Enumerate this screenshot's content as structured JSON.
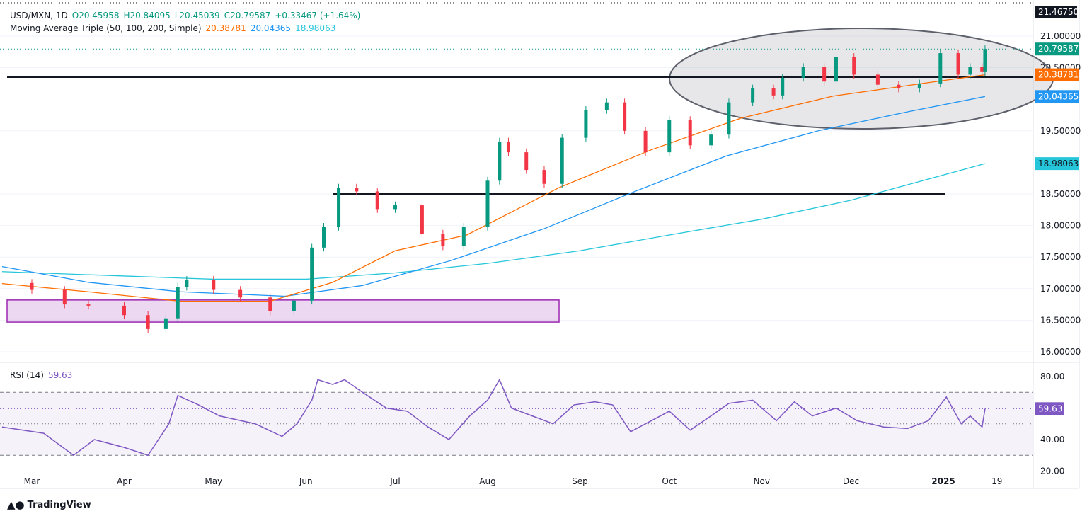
{
  "header": {
    "symbol": "USD/MXN, 1D",
    "open": "O20.45958",
    "high": "H20.84095",
    "low": "L20.45039",
    "close": "C20.79587",
    "change": "+0.33467 (+1.64%)",
    "ma_label": "Moving Average Triple (50, 100, 200, Simple)",
    "ma50": "20.38781",
    "ma100": "20.04365",
    "ma200": "18.98063",
    "rsi_label": "RSI (14)",
    "rsi_value": "59.63"
  },
  "branding": "TradingView",
  "colors": {
    "up": "#089981",
    "down": "#f23645",
    "ma50": "#ff6d00",
    "ma100": "#2196f3",
    "ma200": "#26c6da",
    "rsi": "#7e57c2",
    "zone": "#9c27b0"
  },
  "chart_data": {
    "type": "candlestick",
    "price_axis": {
      "range": [
        16.0,
        21.0
      ],
      "ticks": [
        "21.00000",
        "20.50000",
        "19.50000",
        "18.50000",
        "18.00000",
        "17.50000",
        "17.00000",
        "16.50000",
        "16.00000"
      ],
      "top_label": "21.46750"
    },
    "price_tags": [
      {
        "value": "20.79587",
        "color": "#089981"
      },
      {
        "value": "20.38781",
        "color": "#ff6d00"
      },
      {
        "value": "20.04365",
        "color": "#2196f3"
      },
      {
        "value": "18.98063",
        "color": "#26c6da"
      }
    ],
    "x_ticks": [
      {
        "label": "Mar",
        "date": "2024-03-01"
      },
      {
        "label": "Apr",
        "date": "2024-04-01"
      },
      {
        "label": "May",
        "date": "2024-05-01"
      },
      {
        "label": "Jun",
        "date": "2024-06-01"
      },
      {
        "label": "Jul",
        "date": "2024-07-01"
      },
      {
        "label": "Aug",
        "date": "2024-08-01"
      },
      {
        "label": "Sep",
        "date": "2024-09-01"
      },
      {
        "label": "Oct",
        "date": "2024-10-01"
      },
      {
        "label": "Nov",
        "date": "2024-11-01"
      },
      {
        "label": "Dec",
        "date": "2024-12-01"
      },
      {
        "label": "2025",
        "date": "2025-01-01"
      },
      {
        "label": "19",
        "date": "2025-01-19"
      }
    ],
    "closes": [
      [
        "2024-02-20",
        17.09
      ],
      [
        "2024-03-01",
        16.98
      ],
      [
        "2024-03-12",
        16.75
      ],
      [
        "2024-03-20",
        16.73
      ],
      [
        "2024-04-01",
        16.58
      ],
      [
        "2024-04-09",
        16.36
      ],
      [
        "2024-04-15",
        16.53
      ],
      [
        "2024-04-19",
        17.03
      ],
      [
        "2024-04-22",
        17.14
      ],
      [
        "2024-05-01",
        16.98
      ],
      [
        "2024-05-10",
        16.86
      ],
      [
        "2024-05-20",
        16.64
      ],
      [
        "2024-05-28",
        16.81
      ],
      [
        "2024-06-03",
        17.65
      ],
      [
        "2024-06-07",
        17.98
      ],
      [
        "2024-06-12",
        18.6
      ],
      [
        "2024-06-18",
        18.54
      ],
      [
        "2024-06-25",
        18.26
      ],
      [
        "2024-07-01",
        18.32
      ],
      [
        "2024-07-10",
        17.87
      ],
      [
        "2024-07-17",
        17.67
      ],
      [
        "2024-07-24",
        17.98
      ],
      [
        "2024-08-01",
        18.71
      ],
      [
        "2024-08-05",
        19.33
      ],
      [
        "2024-08-08",
        19.16
      ],
      [
        "2024-08-14",
        18.88
      ],
      [
        "2024-08-20",
        18.66
      ],
      [
        "2024-08-26",
        19.39
      ],
      [
        "2024-09-03",
        19.83
      ],
      [
        "2024-09-10",
        19.95
      ],
      [
        "2024-09-16",
        19.5
      ],
      [
        "2024-09-23",
        19.16
      ],
      [
        "2024-10-01",
        19.67
      ],
      [
        "2024-10-08",
        19.27
      ],
      [
        "2024-10-15",
        19.44
      ],
      [
        "2024-10-21",
        19.95
      ],
      [
        "2024-10-29",
        20.17
      ],
      [
        "2024-11-05",
        20.06
      ],
      [
        "2024-11-08",
        20.34
      ],
      [
        "2024-11-15",
        20.51
      ],
      [
        "2024-11-22",
        20.28
      ],
      [
        "2024-11-26",
        20.67
      ],
      [
        "2024-12-02",
        20.39
      ],
      [
        "2024-12-10",
        20.23
      ],
      [
        "2024-12-17",
        20.17
      ],
      [
        "2024-12-24",
        20.25
      ],
      [
        "2024-12-31",
        20.73
      ],
      [
        "2025-01-06",
        20.39
      ],
      [
        "2025-01-10",
        20.51
      ],
      [
        "2025-01-14",
        20.43
      ],
      [
        "2025-01-15",
        20.79587
      ]
    ],
    "ma50": [
      [
        "2024-02-20",
        17.08
      ],
      [
        "2024-03-20",
        16.95
      ],
      [
        "2024-04-20",
        16.8
      ],
      [
        "2024-05-20",
        16.8
      ],
      [
        "2024-06-10",
        17.1
      ],
      [
        "2024-07-01",
        17.6
      ],
      [
        "2024-07-25",
        17.85
      ],
      [
        "2024-08-25",
        18.6
      ],
      [
        "2024-09-25",
        19.2
      ],
      [
        "2024-10-25",
        19.7
      ],
      [
        "2024-11-25",
        20.05
      ],
      [
        "2024-12-25",
        20.25
      ],
      [
        "2025-01-15",
        20.38781
      ]
    ],
    "ma100": [
      [
        "2024-02-20",
        17.35
      ],
      [
        "2024-03-20",
        17.1
      ],
      [
        "2024-04-20",
        16.95
      ],
      [
        "2024-05-25",
        16.88
      ],
      [
        "2024-06-20",
        17.05
      ],
      [
        "2024-07-20",
        17.45
      ],
      [
        "2024-08-20",
        17.95
      ],
      [
        "2024-09-20",
        18.55
      ],
      [
        "2024-10-20",
        19.1
      ],
      [
        "2024-11-20",
        19.5
      ],
      [
        "2024-12-20",
        19.8
      ],
      [
        "2025-01-15",
        20.04365
      ]
    ],
    "ma200": [
      [
        "2024-02-20",
        17.27
      ],
      [
        "2024-04-01",
        17.2
      ],
      [
        "2024-05-01",
        17.15
      ],
      [
        "2024-06-01",
        17.15
      ],
      [
        "2024-07-01",
        17.25
      ],
      [
        "2024-08-01",
        17.4
      ],
      [
        "2024-09-01",
        17.6
      ],
      [
        "2024-10-01",
        17.85
      ],
      [
        "2024-11-01",
        18.1
      ],
      [
        "2024-12-01",
        18.4
      ],
      [
        "2025-01-15",
        18.98063
      ]
    ],
    "horizontal_lines": [
      20.35,
      18.5
    ],
    "support_zone": {
      "low": 16.47,
      "high": 16.82,
      "start": "2024-02-20",
      "end": "2024-08-25"
    },
    "rsi": {
      "axis_ticks": [
        "80.00",
        "40.00",
        "20.00"
      ],
      "bands": [
        70,
        30
      ],
      "mid": 50,
      "range": [
        20,
        80
      ],
      "values": [
        [
          "2024-02-20",
          48
        ],
        [
          "2024-03-05",
          44
        ],
        [
          "2024-03-15",
          30
        ],
        [
          "2024-03-22",
          40
        ],
        [
          "2024-04-01",
          35
        ],
        [
          "2024-04-09",
          30
        ],
        [
          "2024-04-16",
          50
        ],
        [
          "2024-04-19",
          68
        ],
        [
          "2024-04-26",
          62
        ],
        [
          "2024-05-03",
          55
        ],
        [
          "2024-05-15",
          50
        ],
        [
          "2024-05-24",
          42
        ],
        [
          "2024-05-29",
          50
        ],
        [
          "2024-06-03",
          65
        ],
        [
          "2024-06-05",
          78
        ],
        [
          "2024-06-10",
          75
        ],
        [
          "2024-06-14",
          78
        ],
        [
          "2024-06-20",
          70
        ],
        [
          "2024-06-28",
          60
        ],
        [
          "2024-07-05",
          58
        ],
        [
          "2024-07-12",
          48
        ],
        [
          "2024-07-19",
          40
        ],
        [
          "2024-07-26",
          55
        ],
        [
          "2024-08-01",
          65
        ],
        [
          "2024-08-05",
          78
        ],
        [
          "2024-08-09",
          60
        ],
        [
          "2024-08-16",
          55
        ],
        [
          "2024-08-23",
          50
        ],
        [
          "2024-08-30",
          62
        ],
        [
          "2024-09-06",
          64
        ],
        [
          "2024-09-12",
          62
        ],
        [
          "2024-09-18",
          45
        ],
        [
          "2024-09-25",
          52
        ],
        [
          "2024-10-01",
          58
        ],
        [
          "2024-10-08",
          46
        ],
        [
          "2024-10-15",
          55
        ],
        [
          "2024-10-21",
          63
        ],
        [
          "2024-10-29",
          65
        ],
        [
          "2024-11-06",
          52
        ],
        [
          "2024-11-12",
          64
        ],
        [
          "2024-11-18",
          55
        ],
        [
          "2024-11-26",
          60
        ],
        [
          "2024-12-03",
          52
        ],
        [
          "2024-12-12",
          48
        ],
        [
          "2024-12-20",
          47
        ],
        [
          "2024-12-27",
          52
        ],
        [
          "2025-01-02",
          67
        ],
        [
          "2025-01-07",
          50
        ],
        [
          "2025-01-10",
          55
        ],
        [
          "2025-01-14",
          48
        ],
        [
          "2025-01-15",
          59.63
        ]
      ]
    }
  }
}
